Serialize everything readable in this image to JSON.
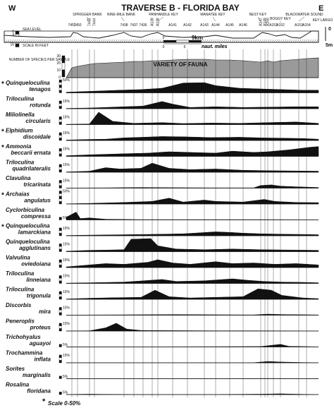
{
  "title": "TRAVERSE B - FLORIDA BAY",
  "west_label": "W",
  "east_label": "E",
  "places": [
    {
      "name": "SPRIGGER BANK"
    },
    {
      "name": "NINE-MILE BANK"
    },
    {
      "name": "PANHANDLE KEY"
    },
    {
      "name": "MANATEE KEY"
    },
    {
      "name": "NEST KEY"
    },
    {
      "name": "BOGGY KEY"
    },
    {
      "name": "BLACKWATER SOUND"
    },
    {
      "name": "KEY LARGO"
    }
  ],
  "stations": [
    "7451",
    "7450",
    "7448",
    "7444",
    "7438",
    "7437",
    "7436",
    "A138",
    "A139",
    "A141",
    "A142",
    "A143",
    "A144",
    "A145",
    "A146",
    "A147",
    "A149",
    "A150",
    "A151",
    "A152",
    "A153",
    "A154"
  ],
  "profile_labels": {
    "sea_level": "SEA LEVEL",
    "scale_feet": "SCALE IN FEET",
    "feet_ticks": [
      "0",
      "4",
      "8",
      "12",
      "16"
    ]
  },
  "distance_scale": {
    "start": "0",
    "end": "9km",
    "unit": "naut. miles",
    "ticks": [
      "0",
      "5"
    ]
  },
  "vertical_scale": {
    "top": "0",
    "bottom": "5m"
  },
  "species_count": {
    "axis_title": "NUMBER OF SPECIES PER SAMPLE",
    "ticks": [
      "30",
      "20",
      "10",
      "0"
    ],
    "label": "VARIETY OF FAUNA"
  },
  "species": [
    {
      "name": "Quinqueloculina tenagos",
      "star": true,
      "scale": "50%",
      "scale_levels": 5
    },
    {
      "name": "Triloculina rotunda",
      "star": false,
      "scale": "15%",
      "scale_levels": 3
    },
    {
      "name": "Miliolinella circularis",
      "star": false,
      "scale": "15%",
      "scale_levels": 3
    },
    {
      "name": "Elphidium discoidale",
      "star": true,
      "scale": "15%",
      "scale_levels": 3
    },
    {
      "name": "Ammonia beccarii ernata",
      "star": true,
      "scale": "15%",
      "scale_levels": 3
    },
    {
      "name": "Triloculina quadrilateralis",
      "star": false,
      "scale": "15%",
      "scale_levels": 3
    },
    {
      "name": "Clavulina tricarinata",
      "star": false,
      "scale": "15%",
      "scale_levels": 3
    },
    {
      "name": "Archaias angulatus",
      "star": true,
      "scale": "50%",
      "scale_levels": 5
    },
    {
      "name": "Cyclorbiculina compressa",
      "star": false,
      "scale": "5%",
      "scale_levels": 1
    },
    {
      "name": "Quinqueloculina lamarckiana",
      "star": true,
      "scale": "15%",
      "scale_levels": 3
    },
    {
      "name": "Quinqueloculina agglutinans",
      "star": false,
      "scale": "15%",
      "scale_levels": 3
    },
    {
      "name": "Valvulina oviedoiana",
      "star": false,
      "scale": "15%",
      "scale_levels": 3
    },
    {
      "name": "Triloculina linneiana",
      "star": false,
      "scale": "15%",
      "scale_levels": 3
    },
    {
      "name": "Triloculina trigonula",
      "star": false,
      "scale": "15%",
      "scale_levels": 3
    },
    {
      "name": "Discorbis mira",
      "star": false,
      "scale": "15%",
      "scale_levels": 3
    },
    {
      "name": "Peneroplis proteus",
      "star": false,
      "scale": "15%",
      "scale_levels": 3
    },
    {
      "name": "Trichohyalus aguayoi",
      "star": false,
      "scale": "5%",
      "scale_levels": 1
    },
    {
      "name": "Trochammina inflata",
      "star": false,
      "scale": "15%",
      "scale_levels": 3
    },
    {
      "name": "Sorites marginalis",
      "star": false,
      "scale": "5%",
      "scale_levels": 1
    },
    {
      "name": "Rosalina floridana",
      "star": false,
      "scale": "5%",
      "scale_levels": 1
    }
  ],
  "footnote": "Scale 0-50%",
  "colors": {
    "ink": "#111111",
    "fauna_fill": "#9a9a9a"
  }
}
